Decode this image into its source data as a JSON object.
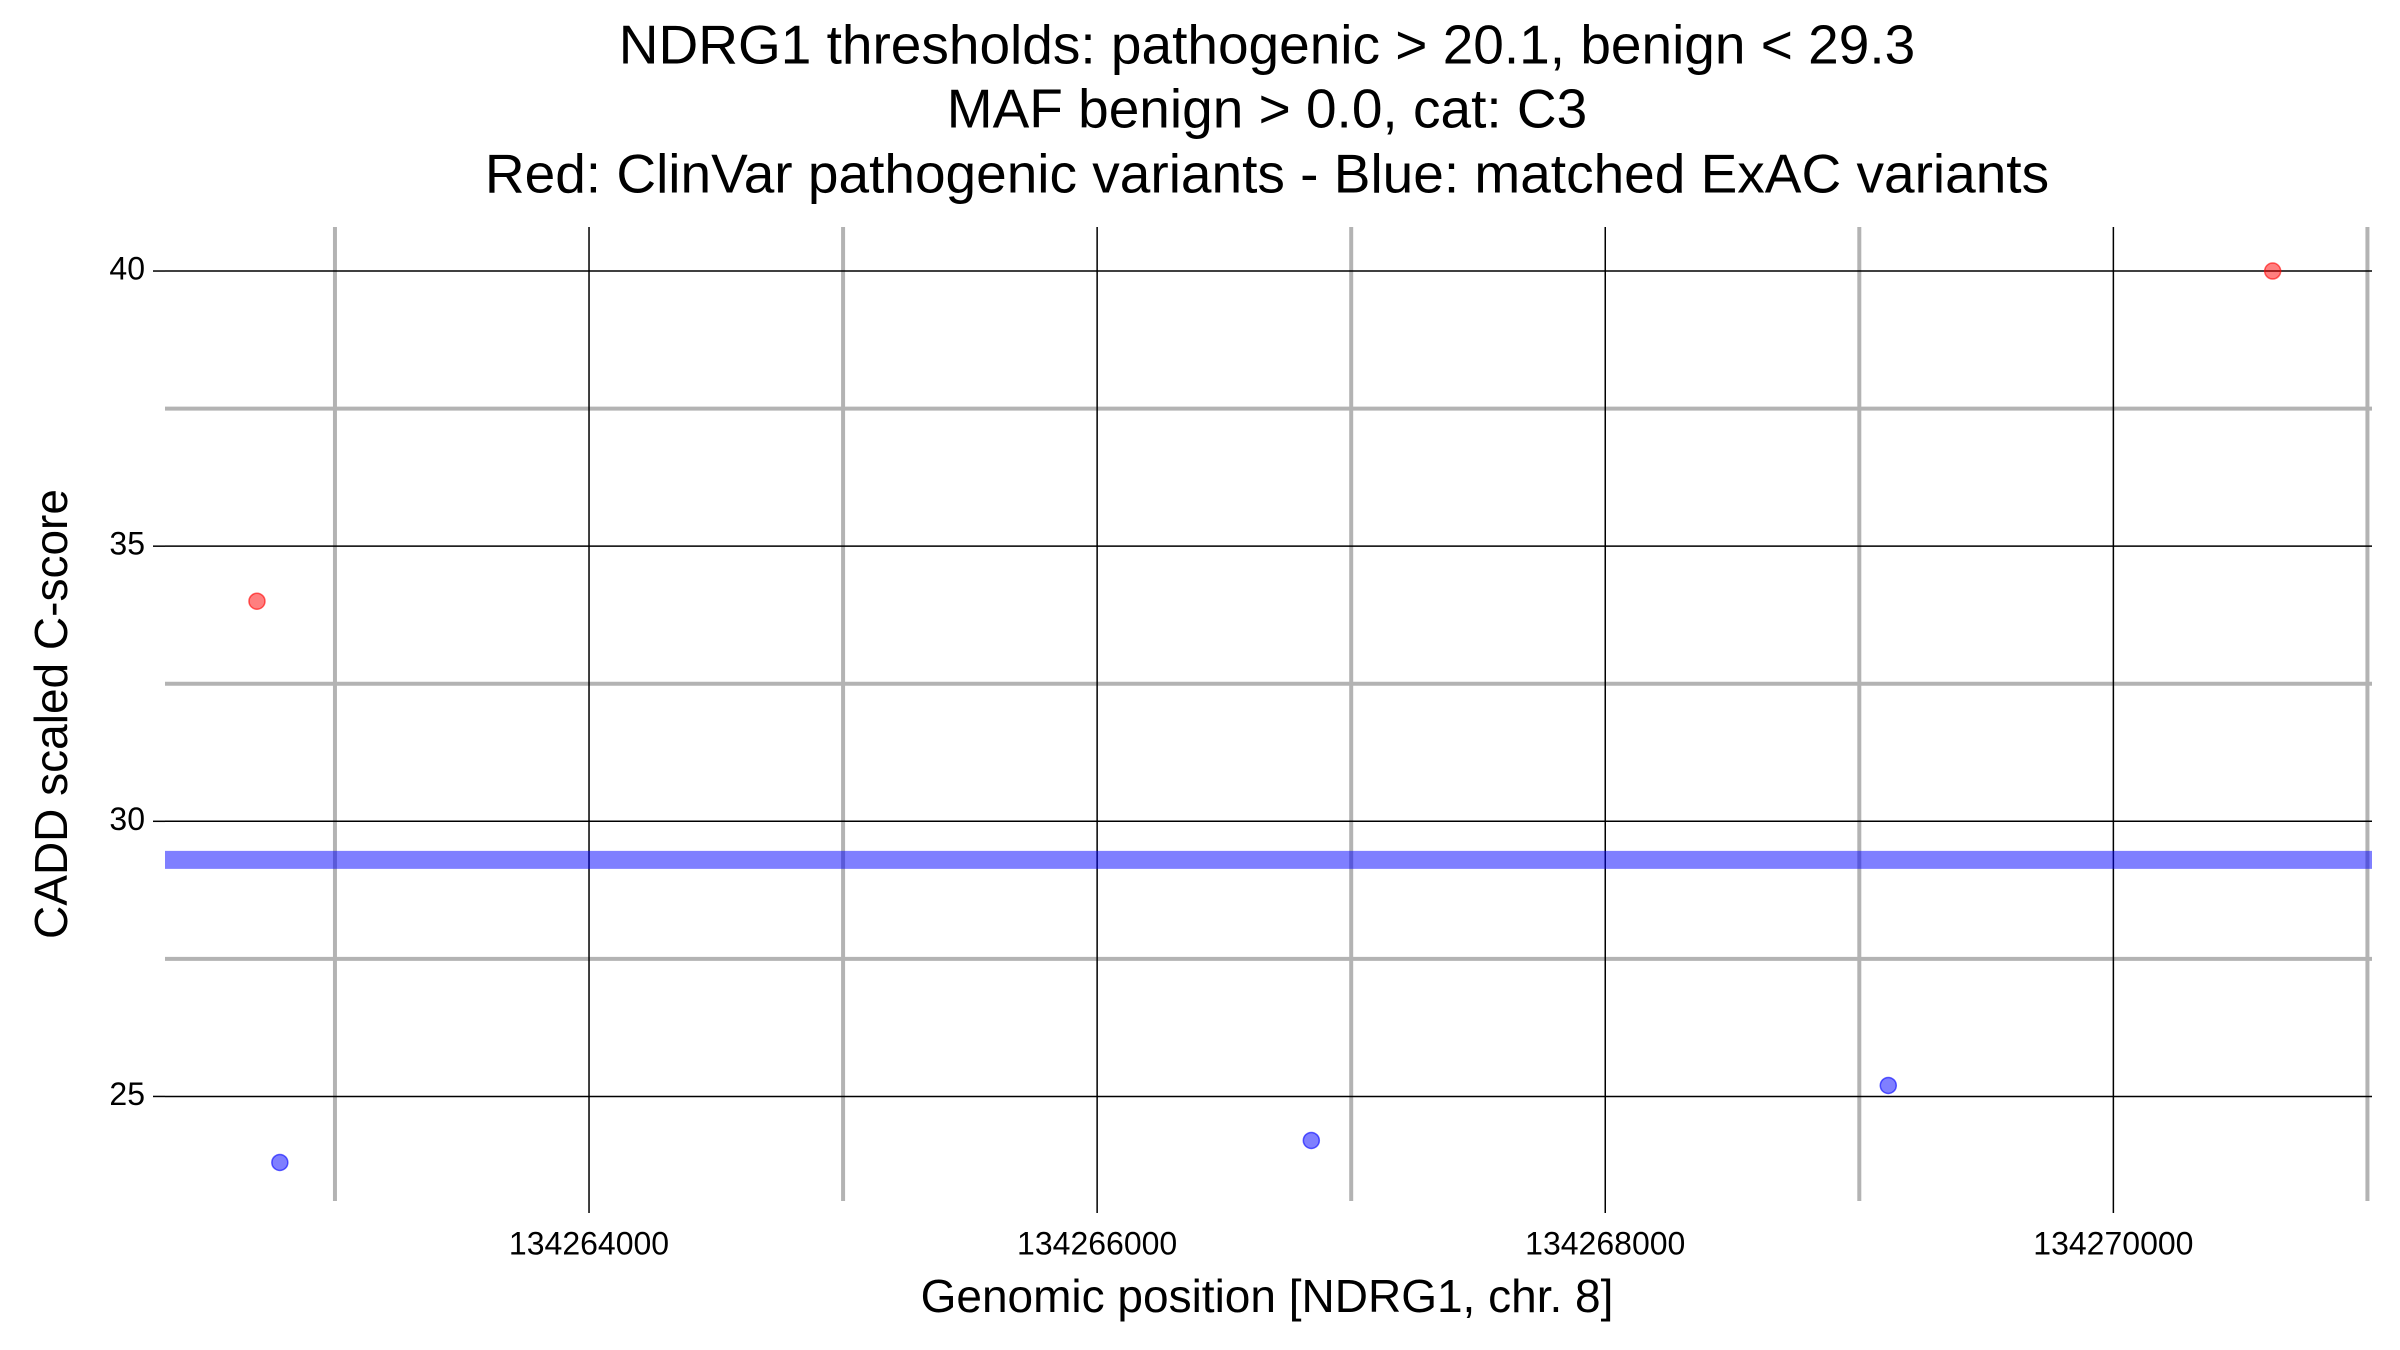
{
  "chart_data": {
    "type": "scatter",
    "title": [
      "NDRG1 thresholds: pathogenic > 20.1, benign < 29.3",
      "MAF benign > 0.0, cat: C3",
      "Red: ClinVar pathogenic variants - Blue: matched ExAC variants"
    ],
    "xlabel": "Genomic position [NDRG1, chr. 8]",
    "ylabel": "CADD scaled C-score",
    "series": [
      {
        "color": "#ff0000",
        "x": [
          134262693,
          134270627
        ],
        "values": [
          34.0,
          40.0
        ]
      },
      {
        "color": "#0000ff",
        "x": [
          134262783,
          134266843,
          134269114
        ],
        "values": [
          23.8,
          24.2,
          25.2
        ]
      }
    ],
    "hlines": [
      {
        "value": 29.3,
        "color": "#0000ff"
      }
    ],
    "xlim": [
      134262331,
      134271018
    ],
    "ylim": [
      23.1,
      40.8
    ],
    "xticks": [
      134264000,
      134266000,
      134268000,
      134270000
    ],
    "yticks": [
      25,
      30,
      35,
      40
    ],
    "xminor": [
      134263000,
      134265000,
      134267000,
      134269000,
      134271000
    ],
    "yminor": [
      27.5,
      32.5,
      37.5
    ],
    "grid": true
  }
}
